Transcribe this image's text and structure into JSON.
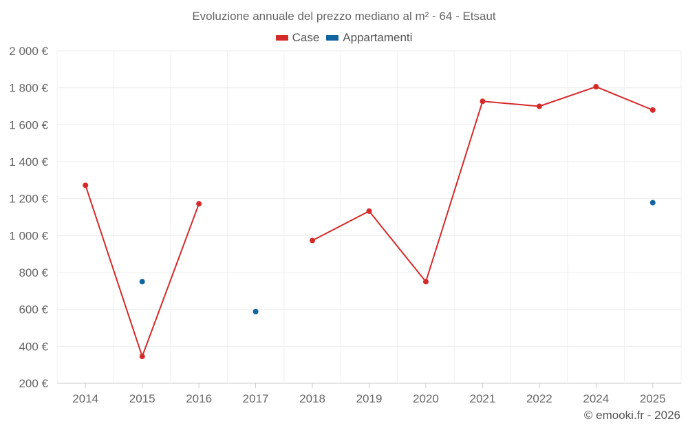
{
  "title": "Evoluzione annuale del prezzo mediano al m² - 64 - Etsaut",
  "credit": "© emooki.fr - 2026",
  "legend": [
    {
      "label": "Case",
      "color": "#d42a2a"
    },
    {
      "label": "Appartamenti",
      "color": "#0f65a0"
    }
  ],
  "chart_data": {
    "type": "line",
    "title": "Evoluzione annuale del prezzo mediano al m² - 64 - Etsaut",
    "categories": [
      "2014",
      "2015",
      "2016",
      "2017",
      "2018",
      "2019",
      "2020",
      "2021",
      "2022",
      "2024",
      "2025"
    ],
    "series": [
      {
        "name": "Case",
        "color": "#d42a2a",
        "values": [
          1272,
          345,
          1172,
          null,
          973,
          1132,
          750,
          1727,
          1700,
          1806,
          1680
        ]
      },
      {
        "name": "Appartamenti",
        "color": "#0f65a0",
        "values": [
          null,
          750,
          null,
          588,
          null,
          null,
          null,
          null,
          null,
          null,
          1178
        ]
      }
    ],
    "ylim": [
      200,
      2000
    ],
    "yticks": [
      200,
      400,
      600,
      800,
      1000,
      1200,
      1400,
      1600,
      1800,
      2000
    ],
    "ytick_labels": [
      "200 €",
      "400 €",
      "600 €",
      "800 €",
      "1 000 €",
      "1 200 €",
      "1 400 €",
      "1 600 €",
      "1 800 €",
      "2 000 €"
    ],
    "grid": true,
    "legend_position": "top-center"
  }
}
